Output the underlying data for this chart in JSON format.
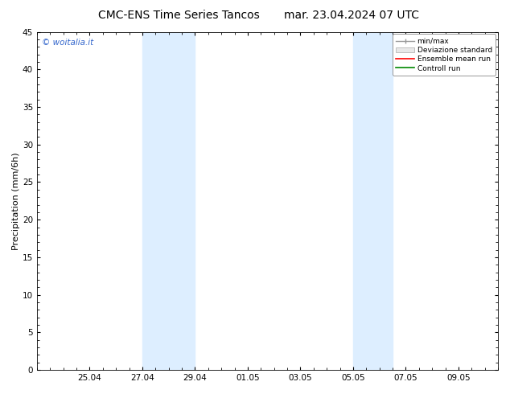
{
  "title_left": "CMC-ENS Time Series Tancos",
  "title_right": "mar. 23.04.2024 07 UTC",
  "ylabel": "Precipitation (mm/6h)",
  "ylim": [
    0,
    45
  ],
  "yticks": [
    0,
    5,
    10,
    15,
    20,
    25,
    30,
    35,
    40,
    45
  ],
  "background_color": "#ffffff",
  "plot_bg_color": "#ffffff",
  "watermark": "© woitalia.it",
  "watermark_color": "#3366cc",
  "shade_color": "#ddeeff",
  "shade1_xmin": 4.0,
  "shade1_xmax": 5.0,
  "shade1b_xmin": 5.0,
  "shade1b_xmax": 6.0,
  "shade2_xmin": 12.0,
  "shade2_xmax": 13.0,
  "shade2b_xmin": 13.0,
  "shade2b_xmax": 13.5,
  "xtick_labels": [
    "25.04",
    "27.04",
    "29.04",
    "01.05",
    "03.05",
    "05.05",
    "07.05",
    "09.05"
  ],
  "xtick_values": [
    2,
    4,
    6,
    8,
    10,
    12,
    14,
    16
  ],
  "xmin": 0,
  "xmax": 17.5,
  "legend_entries": [
    {
      "label": "min/max",
      "color": "#999999",
      "lw": 1.0,
      "ls": "-"
    },
    {
      "label": "Deviazione standard",
      "color": "#dddddd",
      "lw": 6,
      "ls": "-"
    },
    {
      "label": "Ensemble mean run",
      "color": "#ff0000",
      "lw": 1.2,
      "ls": "-"
    },
    {
      "label": "Controll run",
      "color": "#008800",
      "lw": 1.2,
      "ls": "-"
    }
  ],
  "title_fontsize": 10,
  "tick_fontsize": 7.5,
  "ylabel_fontsize": 8
}
